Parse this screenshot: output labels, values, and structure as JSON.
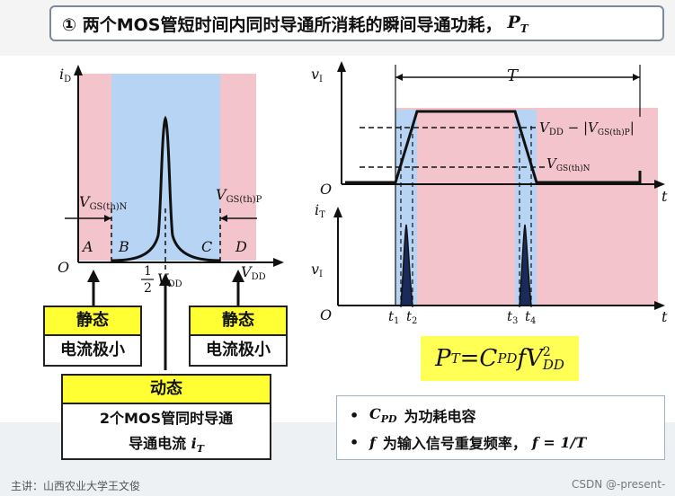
{
  "title": {
    "text": "① 两个MOS管短时间内同时导通所消耗的瞬间导通功耗，",
    "symbol": "P",
    "symbol_sub": "T"
  },
  "left_diagram": {
    "y_axis_label": "i",
    "y_axis_sub": "D",
    "origin": "O",
    "region_letters": [
      "A",
      "B",
      "C",
      "D"
    ],
    "vgs_n": "V",
    "vgs_n_sub": "GS(th)N",
    "vgs_p": "V",
    "vgs_p_sub": "GS(th)P",
    "half": "1",
    "half_den": "2",
    "vdd_half": "V",
    "vdd_half_sub": "DD",
    "vdd": "V",
    "vdd_sub": "DD"
  },
  "right_diagram": {
    "period": "T",
    "vi_label": "v",
    "vi_sub": "I",
    "it_label": "i",
    "it_sub": "T",
    "origin": "O",
    "t_label": "t",
    "vdd_minus": "V",
    "vdd_minus_sub": "DD",
    "vdd_minus_rest": " − |V",
    "vdd_minus_rest_sub": "GS(th)P",
    "vdd_minus_end": "|",
    "vgs_n": "V",
    "vgs_n_sub": "GS(th)N",
    "t1": "t",
    "t1_sub": "1",
    "t2": "t",
    "t2_sub": "2",
    "t3": "t",
    "t3_sub": "3",
    "t4": "t",
    "t4_sub": "4"
  },
  "labels": {
    "static_left_title": "静态",
    "static_left_desc": "电流极小",
    "static_right_title": "静态",
    "static_right_desc": "电流极小",
    "dynamic_title": "动态",
    "dynamic_line1": "2个MOS管同时导通",
    "dynamic_line2": "导通电流",
    "dynamic_symbol": "i",
    "dynamic_symbol_sub": "T"
  },
  "formula": {
    "lhs": "P",
    "lhs_sub": "T",
    "eq": " = ",
    "c": "C",
    "c_sub": "PD",
    "f": "f",
    "v": "V",
    "v_sup": "2",
    "v_sub": "DD"
  },
  "notes": [
    {
      "bullet": "•",
      "symbol": "C",
      "symbol_sub": "PD",
      "text": "为功耗电容"
    },
    {
      "bullet": "•",
      "symbol": "f",
      "symbol_sub": "",
      "text": "为输入信号重复频率，",
      "extra": "f = 1/T"
    }
  ],
  "footer": {
    "left": "主讲：山西农业大学王文俊",
    "right": "CSDN @-present-"
  },
  "colors": {
    "pink": "#f4c4cc",
    "blue": "#b8d4f4",
    "yellow": "#ffff33",
    "curve": "#111111"
  }
}
